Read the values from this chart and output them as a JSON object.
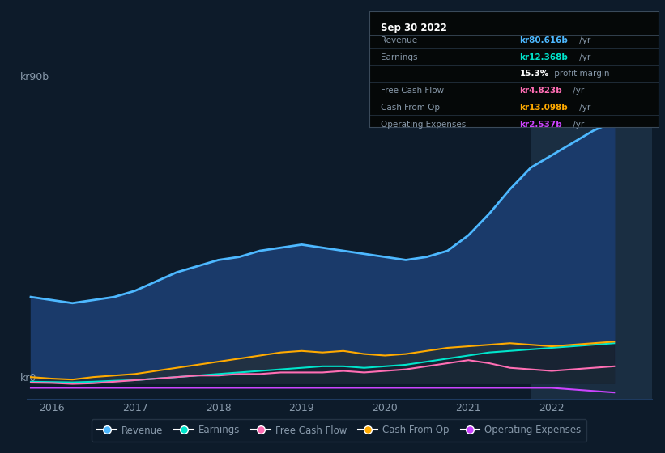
{
  "background_color": "#0d1b2a",
  "plot_bg_color": "#0d1b2a",
  "highlight_bg_color": "#1a2e42",
  "grid_color": "#1e3a5f",
  "text_color": "#8899aa",
  "ylabel_text": "kr90b",
  "y0_text": "kr0",
  "xlim": [
    2015.7,
    2023.2
  ],
  "ylim": [
    -5,
    95
  ],
  "xtick_labels": [
    "2016",
    "2017",
    "2018",
    "2019",
    "2020",
    "2021",
    "2022"
  ],
  "xtick_positions": [
    2016,
    2017,
    2018,
    2019,
    2020,
    2021,
    2022
  ],
  "highlight_xstart": 2021.75,
  "highlight_xend": 2023.2,
  "revenue_color": "#4db8ff",
  "earnings_color": "#00e5cc",
  "fcf_color": "#ff6eb4",
  "cashfromop_color": "#ffaa00",
  "opex_color": "#cc44ff",
  "revenue_fill_color": "#1a3a6a",
  "years": [
    2015.75,
    2016.0,
    2016.25,
    2016.5,
    2016.75,
    2017.0,
    2017.25,
    2017.5,
    2017.75,
    2018.0,
    2018.25,
    2018.5,
    2018.75,
    2019.0,
    2019.25,
    2019.5,
    2019.75,
    2020.0,
    2020.25,
    2020.5,
    2020.75,
    2021.0,
    2021.25,
    2021.5,
    2021.75,
    2022.0,
    2022.25,
    2022.5,
    2022.75
  ],
  "revenue": [
    28,
    27,
    26,
    27,
    28,
    30,
    33,
    36,
    38,
    40,
    41,
    43,
    44,
    45,
    44,
    43,
    42,
    41,
    40,
    41,
    43,
    48,
    55,
    63,
    70,
    74,
    78,
    82,
    85
  ],
  "earnings": [
    0.5,
    0.4,
    0.3,
    0.5,
    0.8,
    1.0,
    1.5,
    2.0,
    2.5,
    3.0,
    3.5,
    4.0,
    4.5,
    5.0,
    5.5,
    5.5,
    5.0,
    5.5,
    6.0,
    7.0,
    8.0,
    9.0,
    10.0,
    10.5,
    11.0,
    11.5,
    12.0,
    12.5,
    13.0
  ],
  "fcf": [
    0.2,
    0.1,
    -0.2,
    0.0,
    0.5,
    1.0,
    1.5,
    2.0,
    2.5,
    2.5,
    3.0,
    3.0,
    3.5,
    3.5,
    3.5,
    4.0,
    3.5,
    4.0,
    4.5,
    5.5,
    6.5,
    7.5,
    6.5,
    5.0,
    4.5,
    4.0,
    4.5,
    5.0,
    5.5
  ],
  "cashfromop": [
    2.0,
    1.5,
    1.2,
    2.0,
    2.5,
    3.0,
    4.0,
    5.0,
    6.0,
    7.0,
    8.0,
    9.0,
    10.0,
    10.5,
    10.0,
    10.5,
    9.5,
    9.0,
    9.5,
    10.5,
    11.5,
    12.0,
    12.5,
    13.0,
    12.5,
    12.0,
    12.5,
    13.0,
    13.5
  ],
  "opex": [
    -1.5,
    -1.5,
    -1.5,
    -1.5,
    -1.5,
    -1.5,
    -1.5,
    -1.5,
    -1.5,
    -1.5,
    -1.5,
    -1.5,
    -1.5,
    -1.5,
    -1.5,
    -1.5,
    -1.5,
    -1.5,
    -1.5,
    -1.5,
    -1.5,
    -1.5,
    -1.5,
    -1.5,
    -1.5,
    -1.5,
    -2.0,
    -2.5,
    -3.0
  ],
  "tooltip": {
    "date": "Sep 30 2022",
    "rows": [
      {
        "label": "Revenue",
        "value": "kr80.616b",
        "value_color": "#4db8ff",
        "unit": " /yr"
      },
      {
        "label": "Earnings",
        "value": "kr12.368b",
        "value_color": "#00e5cc",
        "unit": " /yr"
      },
      {
        "label": "",
        "value": "15.3%",
        "value_color": "#ffffff",
        "unit": " profit margin"
      },
      {
        "label": "Free Cash Flow",
        "value": "kr4.823b",
        "value_color": "#ff6eb4",
        "unit": " /yr"
      },
      {
        "label": "Cash From Op",
        "value": "kr13.098b",
        "value_color": "#ffaa00",
        "unit": " /yr"
      },
      {
        "label": "Operating Expenses",
        "value": "kr2.537b",
        "value_color": "#cc44ff",
        "unit": " /yr"
      }
    ]
  },
  "legend": [
    {
      "label": "Revenue",
      "color": "#4db8ff"
    },
    {
      "label": "Earnings",
      "color": "#00e5cc"
    },
    {
      "label": "Free Cash Flow",
      "color": "#ff6eb4"
    },
    {
      "label": "Cash From Op",
      "color": "#ffaa00"
    },
    {
      "label": "Operating Expenses",
      "color": "#cc44ff"
    }
  ]
}
